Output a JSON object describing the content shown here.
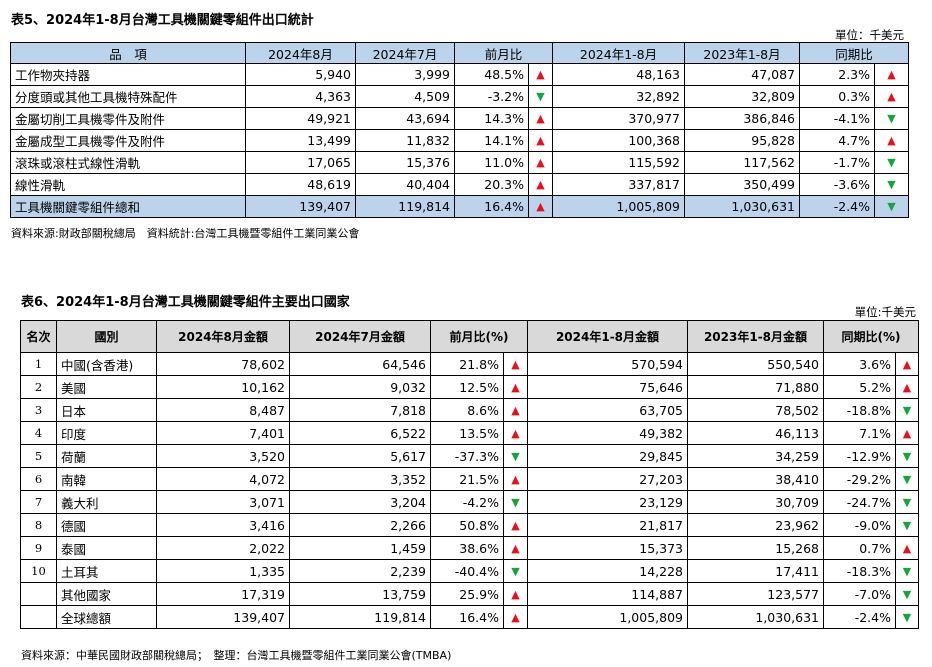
{
  "table5": {
    "title": "表5、2024年1-8月台灣工具機關鍵零組件出口統計",
    "unit": "單位：千美元",
    "headers": [
      "品　項",
      "2024年8月",
      "2024年7月",
      "前月比",
      "2024年1-8月",
      "2023年1-8月",
      "同期比"
    ],
    "rows": [
      {
        "item": "工作物夾持器",
        "aug": "5,940",
        "jul": "3,999",
        "mom": "48.5%",
        "mom_dir": "up",
        "ytd24": "48,163",
        "ytd23": "47,087",
        "yoy": "2.3%",
        "yoy_dir": "up"
      },
      {
        "item": "分度頭或其他工具機特殊配件",
        "aug": "4,363",
        "jul": "4,509",
        "mom": "-3.2%",
        "mom_dir": "down",
        "ytd24": "32,892",
        "ytd23": "32,809",
        "yoy": "0.3%",
        "yoy_dir": "up"
      },
      {
        "item": "金屬切削工具機零件及附件",
        "aug": "49,921",
        "jul": "43,694",
        "mom": "14.3%",
        "mom_dir": "up",
        "ytd24": "370,977",
        "ytd23": "386,846",
        "yoy": "-4.1%",
        "yoy_dir": "down"
      },
      {
        "item": "金屬成型工具機零件及附件",
        "aug": "13,499",
        "jul": "11,832",
        "mom": "14.1%",
        "mom_dir": "up",
        "ytd24": "100,368",
        "ytd23": "95,828",
        "yoy": "4.7%",
        "yoy_dir": "up"
      },
      {
        "item": "滾珠或滾柱式線性滑軌",
        "aug": "17,065",
        "jul": "15,376",
        "mom": "11.0%",
        "mom_dir": "up",
        "ytd24": "115,592",
        "ytd23": "117,562",
        "yoy": "-1.7%",
        "yoy_dir": "down"
      },
      {
        "item": "線性滑軌",
        "aug": "48,619",
        "jul": "40,404",
        "mom": "20.3%",
        "mom_dir": "up",
        "ytd24": "337,817",
        "ytd23": "350,499",
        "yoy": "-3.6%",
        "yoy_dir": "down"
      }
    ],
    "total": {
      "item": "工具機關鍵零組件總和",
      "aug": "139,407",
      "jul": "119,814",
      "mom": "16.4%",
      "mom_dir": "up",
      "ytd24": "1,005,809",
      "ytd23": "1,030,631",
      "yoy": "-2.4%",
      "yoy_dir": "down"
    },
    "source": "資料來源:財政部關稅總局　資料統計:台灣工具機暨零組件工業同業公會"
  },
  "table6": {
    "title": "表6、2024年1-8月台灣工具機關鍵零組件主要出口國家",
    "unit": "單位:千美元",
    "headers": [
      "名次",
      "國別",
      "2024年8月金額",
      "2024年7月金額",
      "前月比(%)",
      "2024年1-8月金額",
      "2023年1-8月金額",
      "同期比(%)"
    ],
    "rows": [
      {
        "rank": "1",
        "country": "中國(含香港)",
        "aug": "78,602",
        "jul": "64,546",
        "mom": "21.8%",
        "mom_dir": "up",
        "ytd24": "570,594",
        "ytd23": "550,540",
        "yoy": "3.6%",
        "yoy_dir": "up"
      },
      {
        "rank": "2",
        "country": "美國",
        "aug": "10,162",
        "jul": "9,032",
        "mom": "12.5%",
        "mom_dir": "up",
        "ytd24": "75,646",
        "ytd23": "71,880",
        "yoy": "5.2%",
        "yoy_dir": "up"
      },
      {
        "rank": "3",
        "country": "日本",
        "aug": "8,487",
        "jul": "7,818",
        "mom": "8.6%",
        "mom_dir": "up",
        "ytd24": "63,705",
        "ytd23": "78,502",
        "yoy": "-18.8%",
        "yoy_dir": "down"
      },
      {
        "rank": "4",
        "country": "印度",
        "aug": "7,401",
        "jul": "6,522",
        "mom": "13.5%",
        "mom_dir": "up",
        "ytd24": "49,382",
        "ytd23": "46,113",
        "yoy": "7.1%",
        "yoy_dir": "up"
      },
      {
        "rank": "5",
        "country": "荷蘭",
        "aug": "3,520",
        "jul": "5,617",
        "mom": "-37.3%",
        "mom_dir": "down",
        "ytd24": "29,845",
        "ytd23": "34,259",
        "yoy": "-12.9%",
        "yoy_dir": "down"
      },
      {
        "rank": "6",
        "country": "南韓",
        "aug": "4,072",
        "jul": "3,352",
        "mom": "21.5%",
        "mom_dir": "up",
        "ytd24": "27,203",
        "ytd23": "38,410",
        "yoy": "-29.2%",
        "yoy_dir": "down"
      },
      {
        "rank": "7",
        "country": "義大利",
        "aug": "3,071",
        "jul": "3,204",
        "mom": "-4.2%",
        "mom_dir": "down",
        "ytd24": "23,129",
        "ytd23": "30,709",
        "yoy": "-24.7%",
        "yoy_dir": "down"
      },
      {
        "rank": "8",
        "country": "德國",
        "aug": "3,416",
        "jul": "2,266",
        "mom": "50.8%",
        "mom_dir": "up",
        "ytd24": "21,817",
        "ytd23": "23,962",
        "yoy": "-9.0%",
        "yoy_dir": "down"
      },
      {
        "rank": "9",
        "country": "泰國",
        "aug": "2,022",
        "jul": "1,459",
        "mom": "38.6%",
        "mom_dir": "up",
        "ytd24": "15,373",
        "ytd23": "15,268",
        "yoy": "0.7%",
        "yoy_dir": "up"
      },
      {
        "rank": "10",
        "country": "土耳其",
        "aug": "1,335",
        "jul": "2,239",
        "mom": "-40.4%",
        "mom_dir": "down",
        "ytd24": "14,228",
        "ytd23": "17,411",
        "yoy": "-18.3%",
        "yoy_dir": "down"
      },
      {
        "rank": "",
        "country": "其他國家",
        "aug": "17,319",
        "jul": "13,759",
        "mom": "25.9%",
        "mom_dir": "up",
        "ytd24": "114,887",
        "ytd23": "123,577",
        "yoy": "-7.0%",
        "yoy_dir": "down"
      },
      {
        "rank": "",
        "country": "全球總額",
        "aug": "139,407",
        "jul": "119,814",
        "mom": "16.4%",
        "mom_dir": "up",
        "ytd24": "1,005,809",
        "ytd23": "1,030,631",
        "yoy": "-2.4%",
        "yoy_dir": "down"
      }
    ],
    "source": "資料來源：中華民國財政部關稅總局；　整理：台灣工具機暨零組件工業同業公會(TMBA)"
  },
  "arrows": {
    "up": "▲",
    "down": "▼"
  },
  "colors": {
    "up": "#e8111b",
    "down": "#14a63c",
    "header5_bg": "#bcd3ec",
    "header6_bg": "#d9d9d9"
  }
}
